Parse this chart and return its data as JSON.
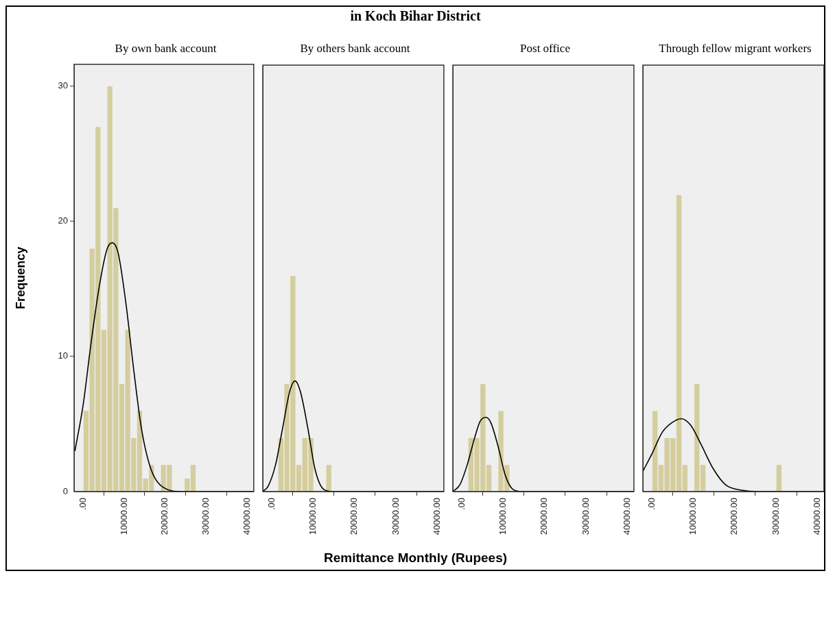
{
  "chart_data": [
    {
      "type": "histogram",
      "title": "By own bank account",
      "annotations": [
        "in Koch Bihar District"
      ],
      "ylabel": "Frequency",
      "xlim": [
        -2200,
        41600
      ],
      "xticks": [
        {
          "value": 0,
          "label": ".00"
        },
        {
          "value": 10000,
          "label": "10000.00"
        },
        {
          "value": 20000,
          "label": "20000.00"
        },
        {
          "value": 30000,
          "label": "30000.00"
        },
        {
          "value": 40000,
          "label": "40000.00"
        }
      ],
      "ylim": [
        0,
        31.6
      ],
      "yticks": [
        0,
        10,
        20,
        30
      ],
      "legend": false,
      "series": [
        {
          "type": "histogram",
          "color": "#d4cd9e",
          "bins": [
            0,
            1450,
            2900,
            4350,
            5800,
            7250,
            8700,
            10150,
            11600,
            13050,
            14500,
            15950,
            17400,
            18850,
            20300,
            21750,
            23200,
            24650,
            26100,
            27550
          ],
          "values": [
            6,
            18,
            27,
            12,
            30,
            21,
            8,
            12,
            4,
            6,
            1,
            2,
            0,
            2,
            2,
            0,
            0,
            1,
            2
          ]
        },
        {
          "type": "line",
          "color": "#000000",
          "x": [
            -2000,
            0,
            1900,
            3900,
            5800,
            7100,
            8500,
            10400,
            12300,
            14200,
            16500,
            19600,
            24200,
            41600
          ],
          "values": [
            3,
            6.4,
            10.9,
            15.1,
            17.9,
            18.4,
            17.7,
            14,
            9.1,
            4.7,
            1.7,
            0.3,
            0,
            0
          ]
        }
      ]
    },
    {
      "type": "histogram",
      "title": "By others bank account",
      "xlabel": "Remittance Monthly (Rupees)",
      "xlim": [
        -2200,
        41600
      ],
      "xticks": [
        {
          "value": 0,
          "label": ".00"
        },
        {
          "value": 10000,
          "label": "10000.00"
        },
        {
          "value": 20000,
          "label": "20000.00"
        },
        {
          "value": 30000,
          "label": "30000.00"
        },
        {
          "value": 40000,
          "label": "40000.00"
        }
      ],
      "ylim": [
        0,
        31.6
      ],
      "yticks": [
        0,
        10,
        20,
        30
      ],
      "tick_labels": "x",
      "legend": false,
      "series": [
        {
          "type": "histogram",
          "color": "#d4cd9e",
          "bins": [
            1450,
            2900,
            4350,
            5800,
            7250,
            8700,
            10150,
            11600,
            13050,
            14500
          ],
          "values": [
            4,
            8,
            16,
            2,
            4,
            4,
            0,
            0,
            2
          ]
        },
        {
          "type": "line",
          "color": "#000000",
          "x": [
            -2200,
            -900,
            900,
            2600,
            4300,
            5600,
            6900,
            8700,
            10400,
            12400,
            14700,
            41600
          ],
          "values": [
            0,
            0.4,
            2,
            4.7,
            7.4,
            8.2,
            7.4,
            4.7,
            1.7,
            0.2,
            0,
            0
          ]
        }
      ]
    },
    {
      "type": "histogram",
      "title": "Post office",
      "xlim": [
        -2200,
        41600
      ],
      "xticks": [
        {
          "value": 0,
          "label": ".00"
        },
        {
          "value": 10000,
          "label": "10000.00"
        },
        {
          "value": 20000,
          "label": "20000.00"
        },
        {
          "value": 30000,
          "label": "30000.00"
        },
        {
          "value": 40000,
          "label": "40000.00"
        }
      ],
      "ylim": [
        0,
        31.6
      ],
      "yticks": [
        0,
        10,
        20,
        30
      ],
      "tick_labels": "x",
      "legend": false,
      "series": [
        {
          "type": "histogram",
          "color": "#d4cd9e",
          "bins": [
            1450,
            2900,
            4350,
            5800,
            7250,
            8700,
            10150,
            11600
          ],
          "values": [
            4,
            4,
            8,
            2,
            0,
            6,
            2
          ]
        },
        {
          "type": "line",
          "color": "#000000",
          "x": [
            -2200,
            -500,
            1300,
            3000,
            4400,
            5800,
            7000,
            8700,
            10500,
            12200,
            14500,
            41600
          ],
          "values": [
            0,
            0.5,
            2,
            3.9,
            5.2,
            5.5,
            5.1,
            3.4,
            1.2,
            0.2,
            0,
            0
          ]
        }
      ]
    },
    {
      "type": "histogram",
      "title": "Through fellow migrant workers",
      "xlim": [
        -2200,
        41600
      ],
      "xticks": [
        {
          "value": 0,
          "label": ".00"
        },
        {
          "value": 10000,
          "label": "10000.00"
        },
        {
          "value": 20000,
          "label": "20000.00"
        },
        {
          "value": 30000,
          "label": "30000.00"
        },
        {
          "value": 40000,
          "label": "40000.00"
        }
      ],
      "ylim": [
        0,
        31.6
      ],
      "yticks": [
        0,
        10,
        20,
        30
      ],
      "tick_labels": "x",
      "legend": false,
      "series": [
        {
          "type": "histogram",
          "color": "#d4cd9e",
          "bins": [
            0,
            1450,
            2900,
            4350,
            5800,
            7250,
            8700,
            10150,
            11600,
            13050,
            30000,
            31450
          ],
          "values": [
            6,
            2,
            4,
            4,
            22,
            2,
            0,
            8,
            2,
            0,
            2
          ]
        },
        {
          "type": "line",
          "color": "#000000",
          "x": [
            -2200,
            0,
            2500,
            4800,
            7100,
            9400,
            11700,
            14800,
            17800,
            21700,
            26300,
            41600
          ],
          "values": [
            1.5,
            2.8,
            4.4,
            5.1,
            5.4,
            4.9,
            3.6,
            1.7,
            0.5,
            0.1,
            0,
            0
          ]
        }
      ]
    }
  ]
}
